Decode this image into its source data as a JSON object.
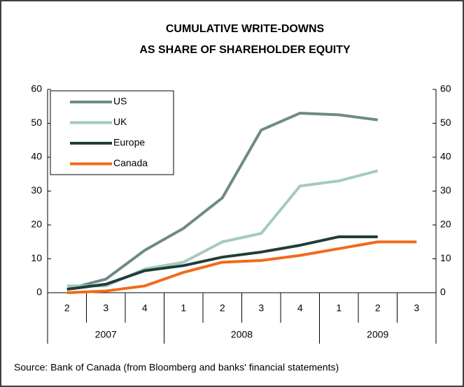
{
  "chart_data": {
    "type": "line",
    "title": [
      "CUMULATIVE WRITE-DOWNS",
      "AS SHARE OF SHAREHOLDER EQUITY"
    ],
    "source": "Source: Bank of Canada (from Bloomberg and banks' financial statements)",
    "categories": [
      "2",
      "3",
      "4",
      "1",
      "2",
      "3",
      "4",
      "1",
      "2",
      "3"
    ],
    "years": [
      "2007",
      "2007",
      "2007",
      "2008",
      "2008",
      "2008",
      "2008",
      "2009",
      "2009",
      "2009"
    ],
    "series": [
      {
        "name": "US",
        "color": "#6f8a84",
        "values": [
          1,
          4,
          12.5,
          19,
          28,
          48,
          53,
          52.5,
          51,
          null
        ]
      },
      {
        "name": "UK",
        "color": "#a6c9bf",
        "values": [
          2,
          2,
          7,
          9,
          15,
          17.5,
          31.5,
          33,
          36,
          null
        ]
      },
      {
        "name": "Europe",
        "color": "#1f3d3a",
        "values": [
          1,
          2.5,
          6.5,
          8,
          10.5,
          12,
          14,
          16.5,
          16.5,
          null
        ]
      },
      {
        "name": "Canada",
        "color": "#f26a1b",
        "values": [
          0,
          0.5,
          2,
          6,
          9,
          9.5,
          11,
          13,
          15,
          15
        ]
      }
    ],
    "ylim": [
      0,
      60
    ],
    "yticks": [
      0,
      10,
      20,
      30,
      40,
      50,
      60
    ],
    "y2lim": [
      0,
      60
    ],
    "y2ticks": [
      0,
      10,
      20,
      30,
      40,
      50,
      60
    ],
    "legend": "top-left"
  }
}
